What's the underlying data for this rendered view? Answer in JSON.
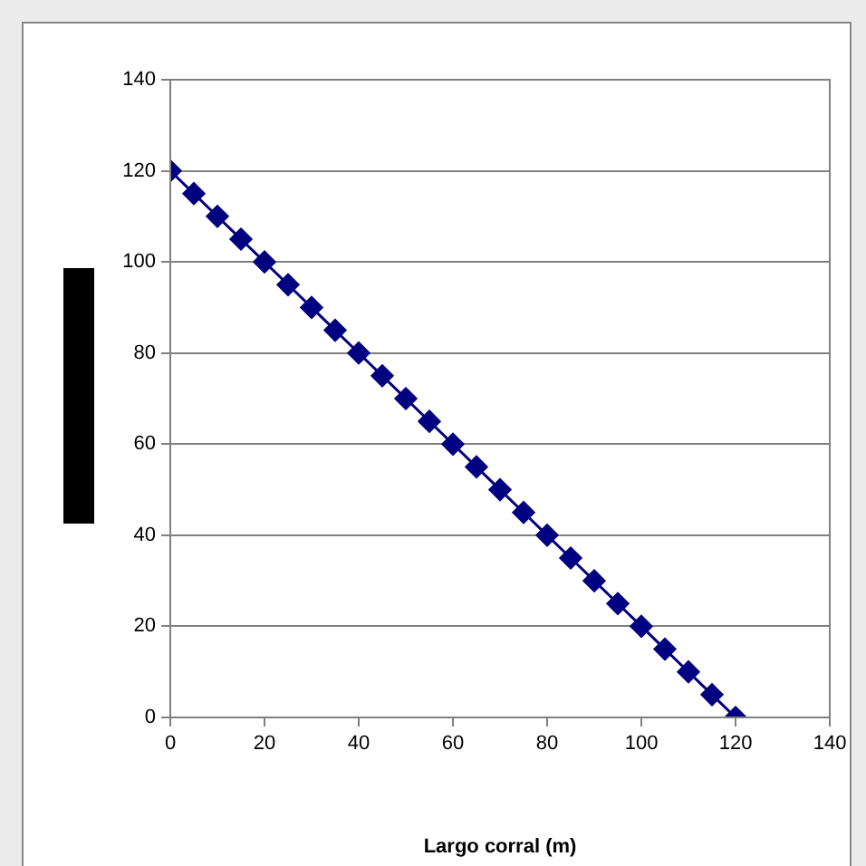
{
  "chart_data": {
    "type": "line",
    "xlabel": "Largo corral (m)",
    "x": [
      0,
      5,
      10,
      15,
      20,
      25,
      30,
      35,
      40,
      45,
      50,
      55,
      60,
      65,
      70,
      75,
      80,
      85,
      90,
      95,
      100,
      105,
      110,
      115,
      120
    ],
    "series": [
      {
        "color": "#000080",
        "values": [
          120,
          115,
          110,
          105,
          100,
          95,
          90,
          85,
          80,
          75,
          70,
          65,
          60,
          55,
          50,
          45,
          40,
          35,
          30,
          25,
          20,
          15,
          10,
          5,
          0
        ]
      }
    ],
    "xlim": [
      0,
      140
    ],
    "xticks": [
      0,
      20,
      40,
      60,
      80,
      100,
      120,
      140
    ],
    "ylim": [
      0,
      140
    ],
    "yticks": [
      0,
      20,
      40,
      60,
      80,
      100,
      120,
      140
    ],
    "grid": "y",
    "marker": "diamond",
    "line_style": "solid",
    "legend": false
  }
}
